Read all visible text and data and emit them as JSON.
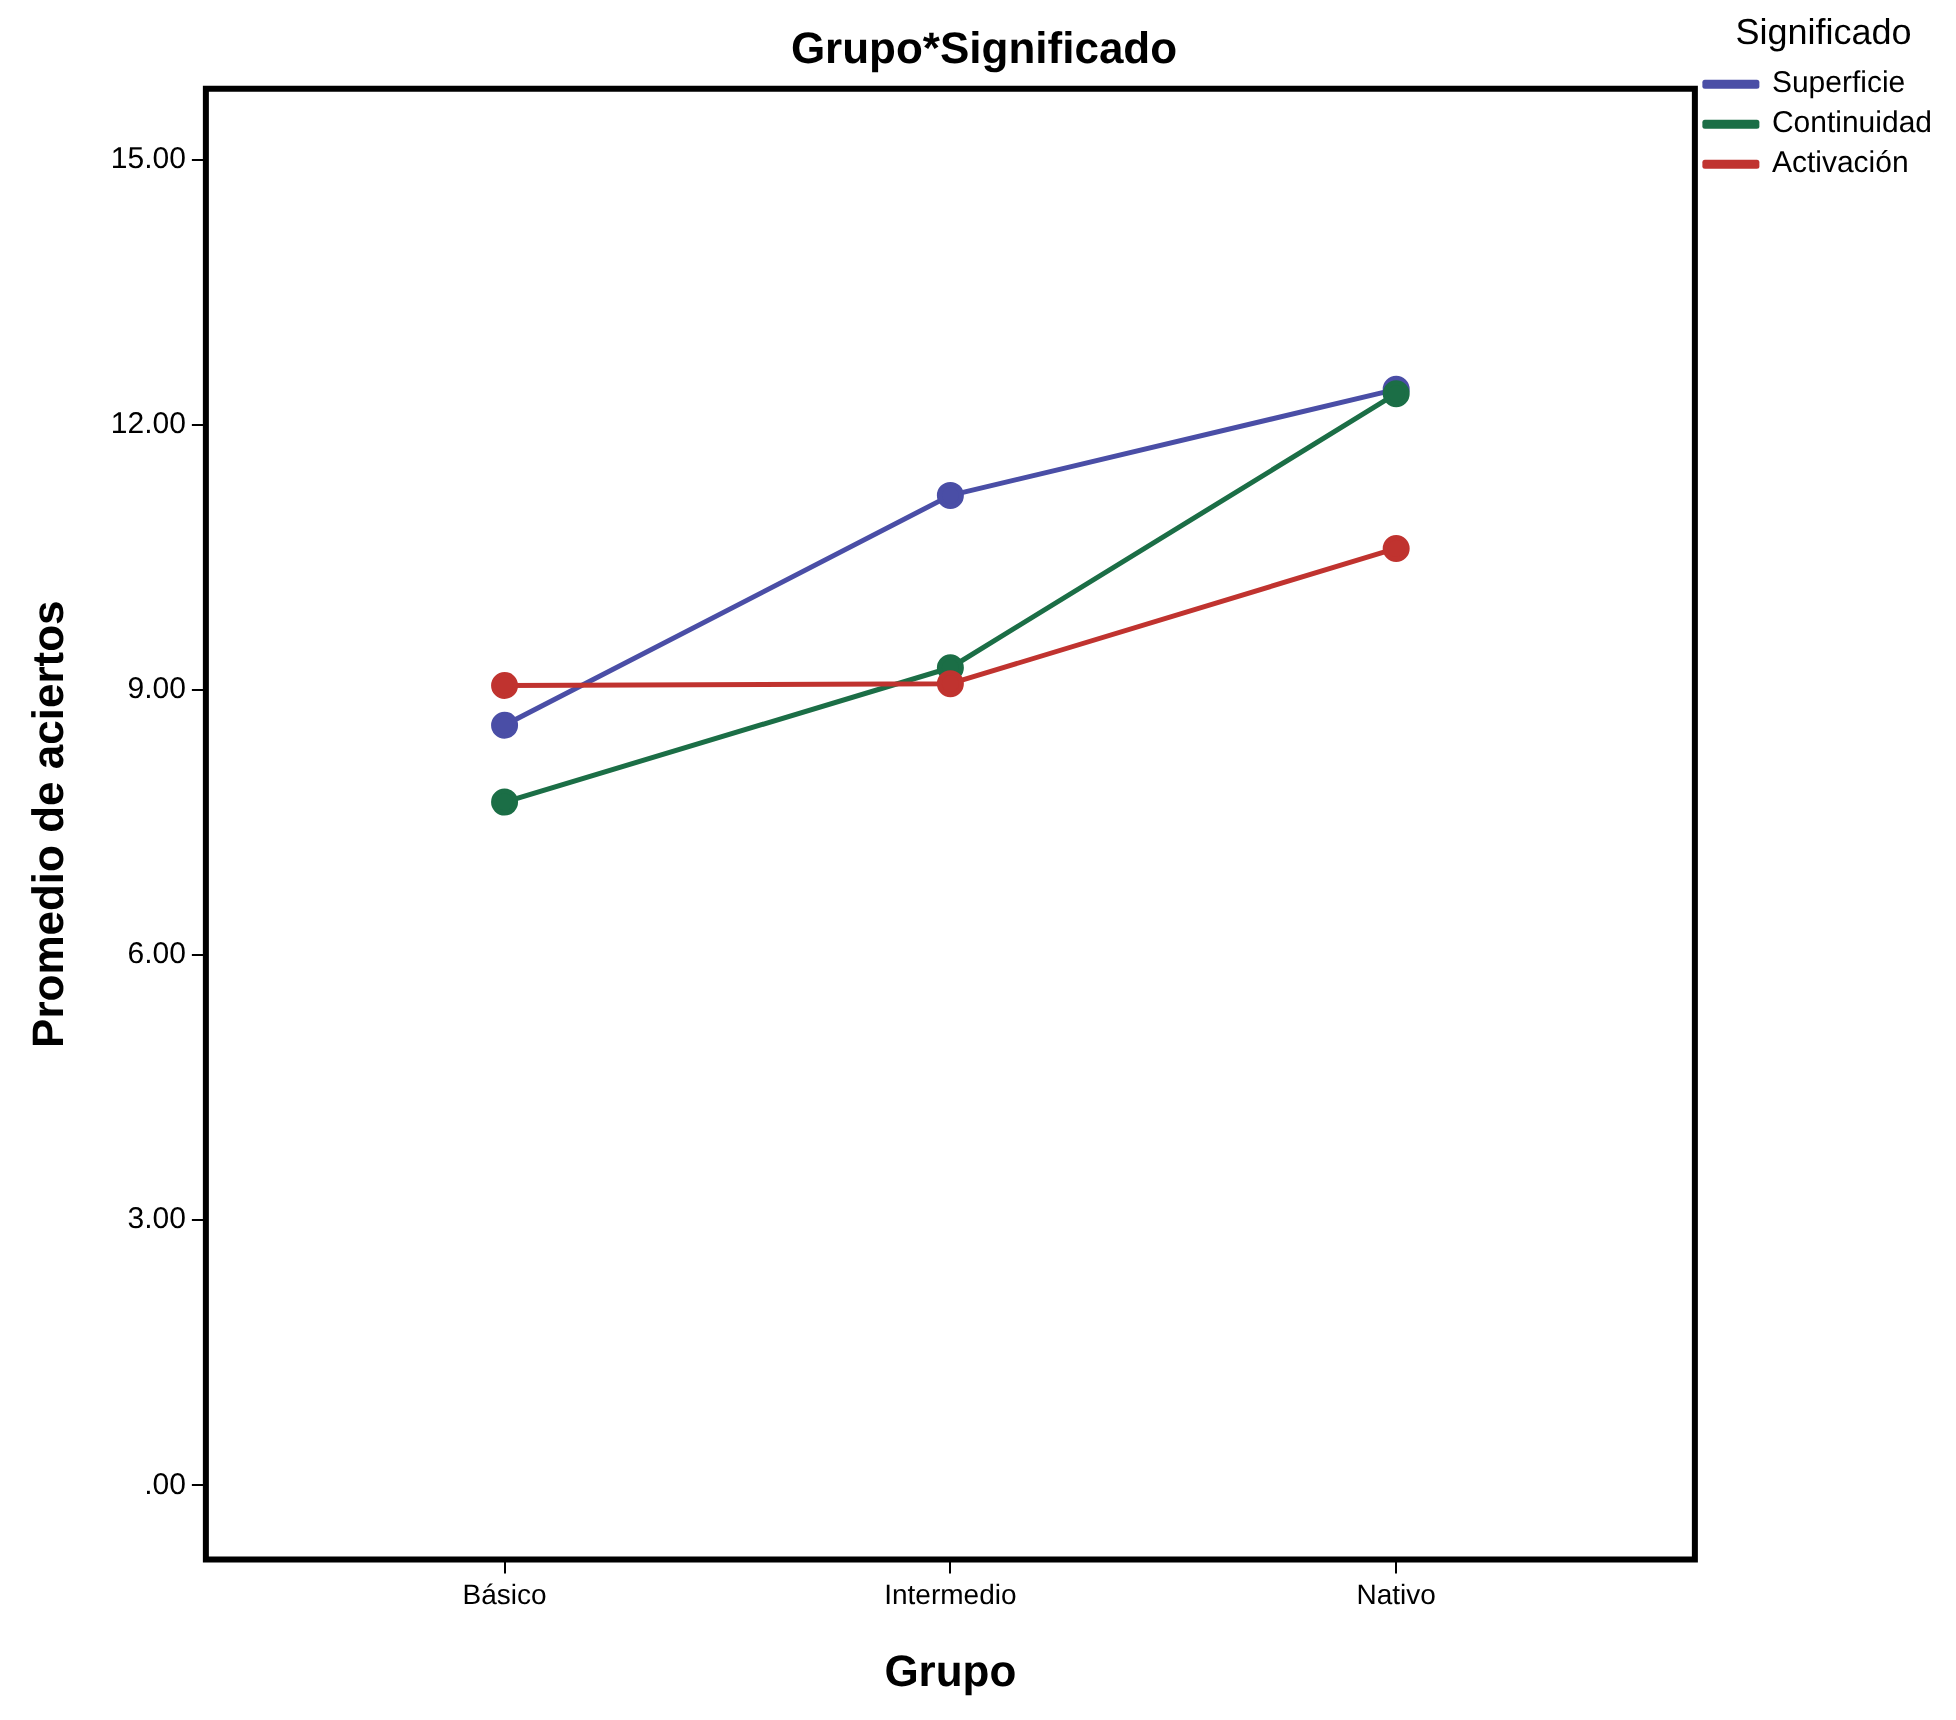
{
  "chart_data": {
    "type": "line",
    "title": "Grupo*Significado",
    "xlabel": "Grupo",
    "ylabel": "Promedio de aciertos",
    "legend_title": "Significado",
    "categories": [
      "Básico",
      "Intermedio",
      "Nativo"
    ],
    "series": [
      {
        "name": "Superficie",
        "color": "#4a4ea6",
        "values": [
          8.6,
          11.2,
          12.4
        ]
      },
      {
        "name": "Continuidad",
        "color": "#1b6e46",
        "values": [
          7.73,
          9.25,
          12.35
        ]
      },
      {
        "name": "Activación",
        "color": "#c0332f",
        "values": [
          9.05,
          9.07,
          10.6
        ]
      }
    ],
    "ylim": [
      -0.84,
      15.8
    ],
    "yticks": [
      {
        "value": 0,
        "label": ".00"
      },
      {
        "value": 3,
        "label": "3.00"
      },
      {
        "value": 6,
        "label": "6.00"
      },
      {
        "value": 9,
        "label": "9.00"
      },
      {
        "value": 12,
        "label": "12.00"
      },
      {
        "value": 15,
        "label": "15.00"
      }
    ],
    "grid": false,
    "legend": "top right",
    "marker": "circle",
    "line_style": "solid"
  }
}
